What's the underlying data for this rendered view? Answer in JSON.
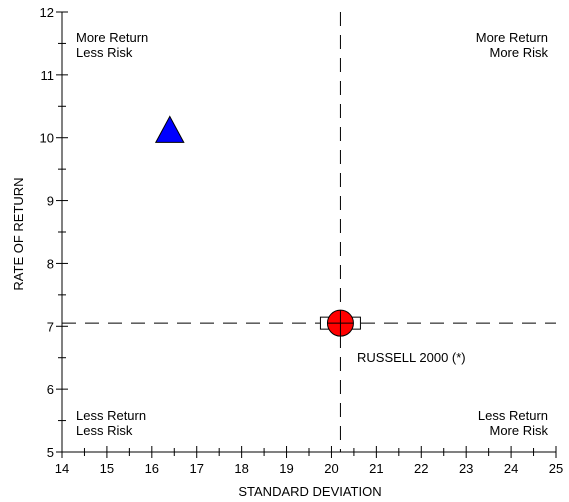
{
  "chart_data": {
    "type": "scatter",
    "xlabel": "STANDARD DEVIATION",
    "ylabel": "RATE OF RETURN",
    "xlim": [
      14,
      25
    ],
    "ylim": [
      5,
      12
    ],
    "x_ticks": [
      14,
      15,
      16,
      17,
      18,
      19,
      20,
      21,
      22,
      23,
      24,
      25
    ],
    "y_ticks": [
      5,
      6,
      7,
      8,
      9,
      10,
      11,
      12
    ],
    "series": [
      {
        "marker": "triangle",
        "color": "#0000ff",
        "points": [
          {
            "x": 16.4,
            "y": 10.1
          }
        ]
      },
      {
        "name": "RUSSELL 2000 (*)",
        "marker": "circle",
        "color": "#ff0000",
        "points": [
          {
            "x": 20.2,
            "y": 7.05
          }
        ]
      }
    ],
    "benchmark_box": {
      "x": 20.2,
      "y": 7.05
    },
    "reference_lines": {
      "x": 20.2,
      "y": 7.05,
      "style": "dashed"
    },
    "quadrant_labels": {
      "top_left": [
        "More Return",
        "Less Risk"
      ],
      "top_right": [
        "More Return",
        "More Risk"
      ],
      "bottom_left": [
        "Less Return",
        "Less Risk"
      ],
      "bottom_right": [
        "Less Return",
        "More Risk"
      ]
    },
    "benchmark_label": "RUSSELL 2000 (*)",
    "grid": false,
    "legend": "none"
  }
}
